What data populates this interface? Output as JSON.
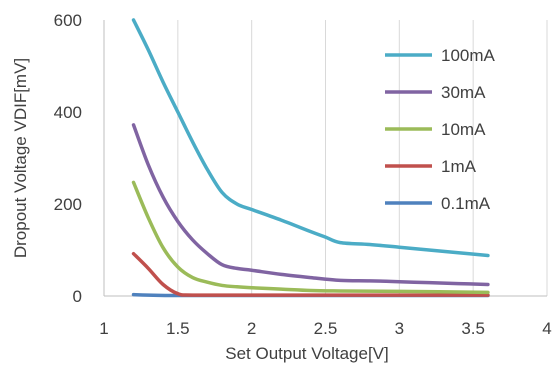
{
  "chart_data": {
    "type": "line",
    "xlabel": "Set Output Voltage[V]",
    "ylabel": "Dropout Voltage VDIF[mV]",
    "xlim": [
      1,
      4
    ],
    "ylim": [
      0,
      600
    ],
    "xticks": [
      1,
      1.5,
      2,
      2.5,
      3,
      3.5,
      4
    ],
    "xtick_labels": [
      "1",
      "1.5",
      "2",
      "2.5",
      "3",
      "3.5",
      "4"
    ],
    "yticks": [
      0,
      200,
      400,
      600
    ],
    "ytick_labels": [
      "0",
      "200",
      "400",
      "600"
    ],
    "grid": "vertical",
    "legend_position": "right",
    "series": [
      {
        "name": "100mA",
        "color": "#4bacc6",
        "points": [
          [
            1.2,
            600
          ],
          [
            1.3,
            535
          ],
          [
            1.4,
            465
          ],
          [
            1.5,
            400
          ],
          [
            1.6,
            335
          ],
          [
            1.7,
            275
          ],
          [
            1.8,
            225
          ],
          [
            1.9,
            200
          ],
          [
            2.0,
            188
          ],
          [
            2.2,
            165
          ],
          [
            2.4,
            140
          ],
          [
            2.5,
            128
          ],
          [
            2.6,
            116
          ],
          [
            2.8,
            112
          ],
          [
            3.0,
            106
          ],
          [
            3.2,
            100
          ],
          [
            3.4,
            94
          ],
          [
            3.6,
            88
          ]
        ]
      },
      {
        "name": "30mA",
        "color": "#8064a2",
        "points": [
          [
            1.2,
            372
          ],
          [
            1.3,
            285
          ],
          [
            1.4,
            215
          ],
          [
            1.5,
            162
          ],
          [
            1.6,
            122
          ],
          [
            1.7,
            92
          ],
          [
            1.8,
            68
          ],
          [
            1.9,
            60
          ],
          [
            2.0,
            56
          ],
          [
            2.2,
            47
          ],
          [
            2.4,
            40
          ],
          [
            2.6,
            34
          ],
          [
            2.8,
            33
          ],
          [
            3.0,
            31
          ],
          [
            3.2,
            29
          ],
          [
            3.4,
            27
          ],
          [
            3.6,
            25
          ]
        ]
      },
      {
        "name": "10mA",
        "color": "#9bbb59",
        "points": [
          [
            1.2,
            247
          ],
          [
            1.3,
            170
          ],
          [
            1.4,
            105
          ],
          [
            1.5,
            63
          ],
          [
            1.6,
            40
          ],
          [
            1.7,
            30
          ],
          [
            1.8,
            23
          ],
          [
            1.9,
            20
          ],
          [
            2.0,
            18
          ],
          [
            2.2,
            15
          ],
          [
            2.4,
            12
          ],
          [
            2.6,
            11
          ],
          [
            3.0,
            10
          ],
          [
            3.6,
            8
          ]
        ]
      },
      {
        "name": "1mA",
        "color": "#c0504d",
        "points": [
          [
            1.2,
            92
          ],
          [
            1.3,
            60
          ],
          [
            1.4,
            25
          ],
          [
            1.5,
            5
          ],
          [
            1.6,
            2
          ],
          [
            2.0,
            2
          ],
          [
            3.0,
            2
          ],
          [
            3.6,
            2
          ]
        ]
      },
      {
        "name": "0.1mA",
        "color": "#4f81bd",
        "points": [
          [
            1.2,
            3
          ],
          [
            1.3,
            2
          ],
          [
            1.5,
            1
          ],
          [
            2.0,
            1
          ],
          [
            3.0,
            1
          ],
          [
            3.6,
            1
          ]
        ]
      }
    ]
  }
}
